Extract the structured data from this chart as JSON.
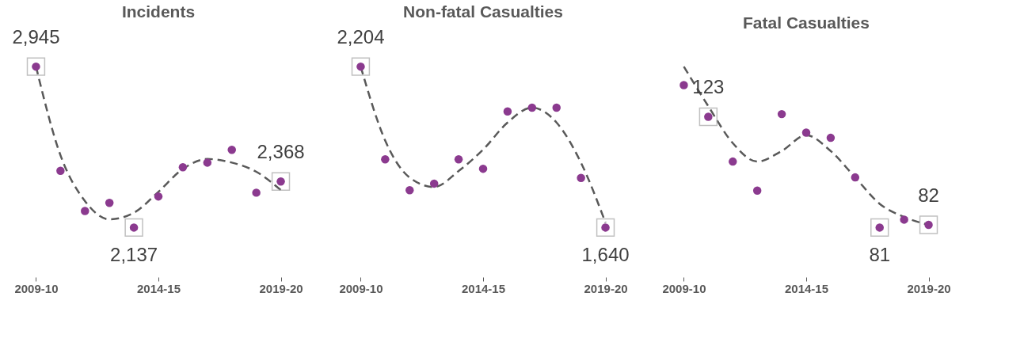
{
  "chart_data": [
    {
      "type": "scatter",
      "title": "Incidents",
      "categories": [
        "2009-10",
        null,
        null,
        null,
        null,
        "2014-15",
        null,
        null,
        null,
        null,
        "2019-20"
      ],
      "tick_labels": "x",
      "grid": false,
      "series": [
        {
          "type": "line",
          "line_style": "dashed",
          "color": "#595959",
          "values": [
            2945,
            2500,
            2270,
            2178,
            2211,
            2316,
            2431,
            2481,
            2463,
            2417,
            2325
          ]
        },
        {
          "marker": "circle",
          "color": "#8b3a8f",
          "values": [
            2945,
            2422,
            2220,
            2261,
            2137,
            2293,
            2440,
            2463,
            2527,
            2312,
            2368
          ],
          "value_labels": [
            "2,945",
            null,
            null,
            null,
            "2,137",
            null,
            null,
            null,
            null,
            null,
            "2,368"
          ]
        }
      ]
    },
    {
      "type": "scatter",
      "title": "Non-fatal Casualties",
      "categories": [
        "2009-10",
        null,
        null,
        null,
        null,
        "2014-15",
        null,
        null,
        null,
        null,
        "2019-20"
      ],
      "tick_labels": "x",
      "grid": false,
      "series": [
        {
          "type": "line",
          "line_style": "dashed",
          "color": "#595959",
          "values": [
            2204,
            1945,
            1815,
            1782,
            1838,
            1913,
            2008,
            2060,
            2008,
            1867,
            1657
          ]
        },
        {
          "marker": "circle",
          "color": "#8b3a8f",
          "values": [
            2204,
            1879,
            1771,
            1794,
            1879,
            1846,
            2047,
            2060,
            2060,
            1814,
            1640
          ],
          "value_labels": [
            "2,204",
            null,
            null,
            null,
            null,
            null,
            null,
            null,
            null,
            null,
            "1,640"
          ]
        }
      ]
    },
    {
      "type": "scatter",
      "title": "Fatal Casualties",
      "categories": [
        "2009-10",
        null,
        null,
        null,
        null,
        "2014-15",
        null,
        null,
        null,
        null,
        "2019-20"
      ],
      "tick_labels": "x",
      "grid": false,
      "series": [
        {
          "type": "line",
          "line_style": "dashed",
          "color": "#595959",
          "values": [
            142,
            127,
            113,
            106,
            110,
            116,
            110,
            100,
            90,
            85,
            82
          ]
        },
        {
          "marker": "circle",
          "color": "#8b3a8f",
          "values": [
            135,
            123,
            106,
            95,
            124,
            117,
            115,
            100,
            81,
            84,
            82
          ],
          "value_labels": [
            null,
            "123",
            null,
            null,
            null,
            null,
            null,
            null,
            "81",
            null,
            "82"
          ]
        }
      ]
    }
  ]
}
